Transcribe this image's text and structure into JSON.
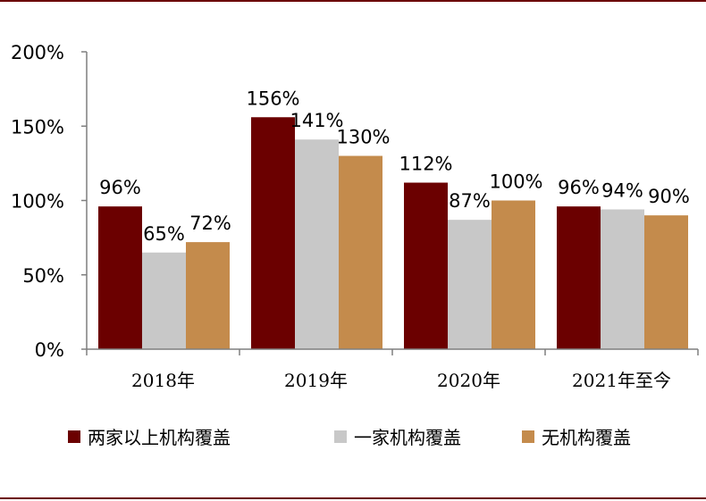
{
  "chart_data": {
    "type": "bar",
    "categories": [
      "2018年",
      "2019年",
      "2020年",
      "2021年至今"
    ],
    "series": [
      {
        "name": "两家以上机构覆盖",
        "values": [
          96,
          156,
          112,
          96
        ],
        "labels": [
          "96%",
          "156%",
          "112%",
          "96%"
        ],
        "color": "#6b0000"
      },
      {
        "name": "一家机构覆盖",
        "values": [
          65,
          141,
          87,
          94
        ],
        "labels": [
          "65%",
          "141%",
          "87%",
          "94%"
        ],
        "color": "#c8c8c8"
      },
      {
        "name": "无机构覆盖",
        "values": [
          72,
          130,
          100,
          90
        ],
        "labels": [
          "72%",
          "130%",
          "100%",
          "90%"
        ],
        "color": "#c48b4c"
      }
    ],
    "yticks": [
      "0%",
      "50%",
      "100%",
      "150%",
      "200%"
    ],
    "ytick_values": [
      0,
      50,
      100,
      150,
      200
    ],
    "ylim": [
      0,
      200
    ],
    "legend_position": "bottom",
    "grid": false
  },
  "colors": {
    "rule": "#6b0000"
  }
}
